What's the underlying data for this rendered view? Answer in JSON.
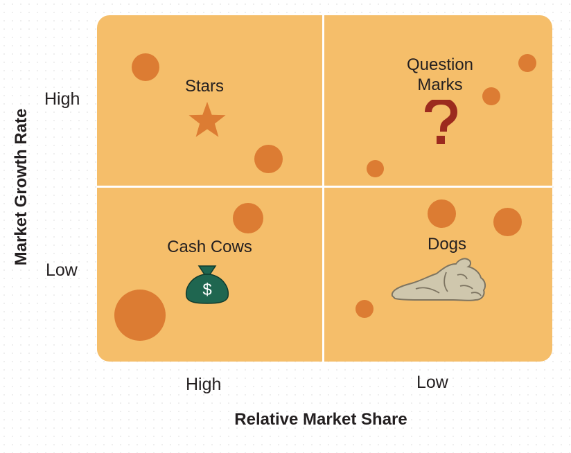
{
  "quadrants": {
    "stars": {
      "label": "Stars",
      "icon": "star-icon"
    },
    "question_marks": {
      "label_line1": "Question",
      "label_line2": "Marks",
      "icon": "question-mark-icon"
    },
    "cash_cows": {
      "label": "Cash Cows",
      "icon": "money-bag-icon",
      "icon_symbol": "$"
    },
    "dogs": {
      "label": "Dogs",
      "icon": "sleeping-dog-icon"
    }
  },
  "axes": {
    "y_title": "Market Growth Rate",
    "y_high": "High",
    "y_low": "Low",
    "x_title": "Relative Market Share",
    "x_high": "High",
    "x_low": "Low"
  },
  "colors": {
    "quadrant_fill": "#f5be6a",
    "bubble": "#dc7c33",
    "star": "#dc7c33",
    "question_mark": "#9c2a1e",
    "money_bag": "#1f6650",
    "dog": "#cfc7ad",
    "divider": "#ffffff"
  }
}
